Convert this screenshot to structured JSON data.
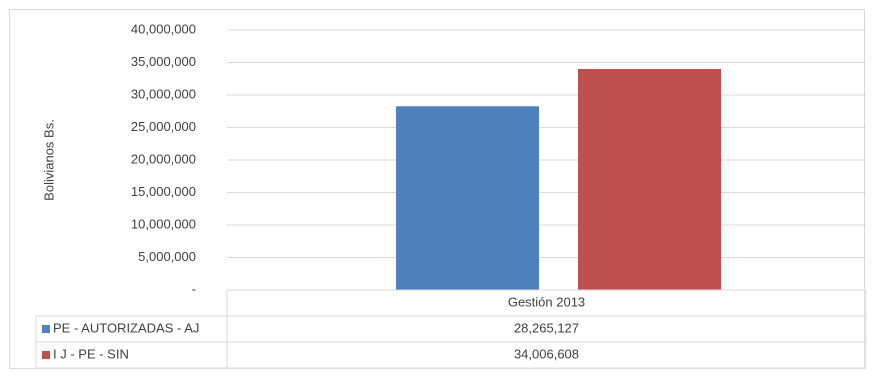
{
  "chart_data": {
    "type": "bar",
    "categories": [
      "Gestión 2013"
    ],
    "series": [
      {
        "name": "PE - AUTORIZADAS - AJ",
        "values": [
          28265127
        ],
        "value_label": "28,265,127",
        "color": "#4f81bd"
      },
      {
        "name": "I J - PE - SIN",
        "values": [
          34006608
        ],
        "value_label": "34,006,608",
        "color": "#c0504d"
      }
    ],
    "title": "",
    "xlabel": "",
    "ylabel": "Bolivianos  Bs.",
    "ylim": [
      0,
      40000000
    ],
    "y_ticks": [
      {
        "value": 0,
        "label": "-"
      },
      {
        "value": 5000000,
        "label": "5,000,000"
      },
      {
        "value": 10000000,
        "label": "10,000,000"
      },
      {
        "value": 15000000,
        "label": "15,000,000"
      },
      {
        "value": 20000000,
        "label": "20,000,000"
      },
      {
        "value": 25000000,
        "label": "25,000,000"
      },
      {
        "value": 30000000,
        "label": "30,000,000"
      },
      {
        "value": 35000000,
        "label": "35,000,000"
      },
      {
        "value": 40000000,
        "label": "40,000,000"
      }
    ],
    "grid": true,
    "legend": "data-table"
  }
}
